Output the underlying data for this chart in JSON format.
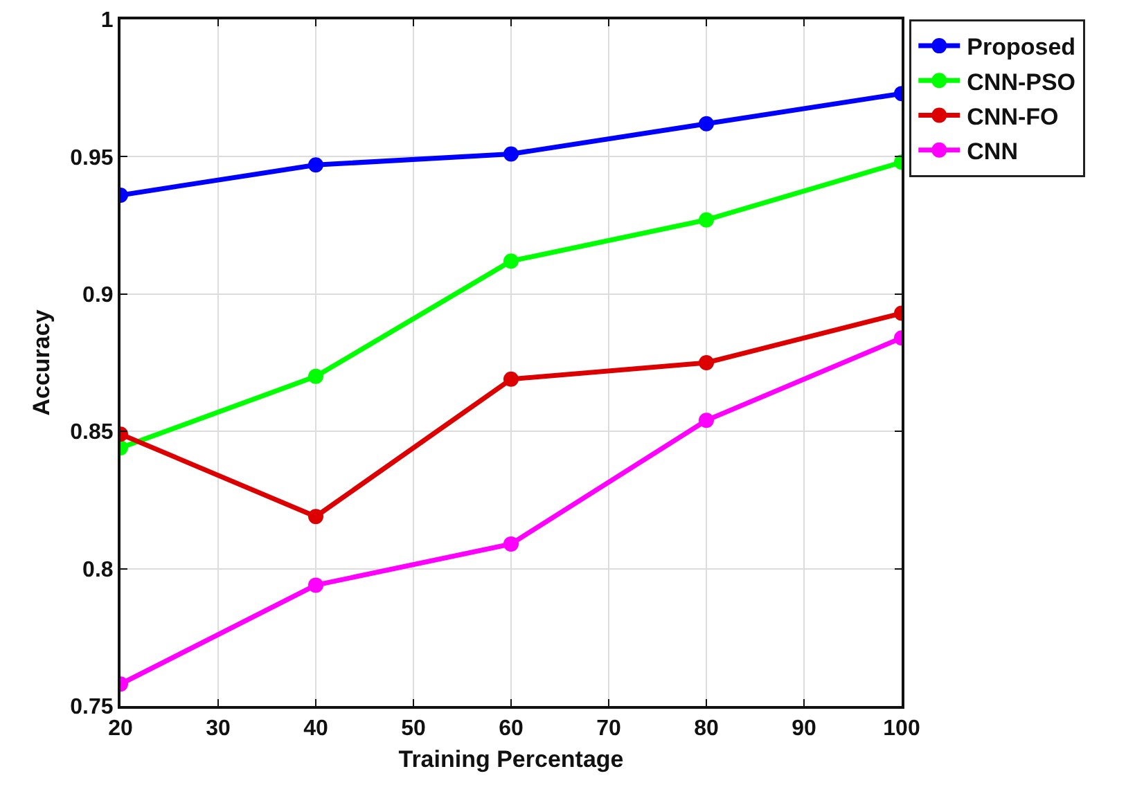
{
  "chart_data": {
    "type": "line",
    "xlabel": "Training Percentage",
    "ylabel": "Accuracy",
    "x": [
      20,
      40,
      60,
      80,
      100
    ],
    "series": [
      {
        "name": "Proposed",
        "color": "#0000ff",
        "values": [
          0.936,
          0.947,
          0.951,
          0.962,
          0.973
        ]
      },
      {
        "name": "CNN-PSO",
        "color": "#00ff00",
        "values": [
          0.844,
          0.87,
          0.912,
          0.927,
          0.948
        ]
      },
      {
        "name": "CNN-FO",
        "color": "#dd0000",
        "values": [
          0.849,
          0.819,
          0.869,
          0.875,
          0.893
        ]
      },
      {
        "name": "CNN",
        "color": "#ff00ff",
        "values": [
          0.758,
          0.794,
          0.809,
          0.854,
          0.884
        ]
      }
    ],
    "xlim": [
      20,
      100
    ],
    "xticks": [
      20,
      30,
      40,
      50,
      60,
      70,
      80,
      90,
      100
    ],
    "ylim": [
      0.75,
      1
    ],
    "yticks": [
      0.75,
      0.8,
      0.85,
      0.9,
      0.95,
      1
    ],
    "grid": true,
    "legend": "top right",
    "marker": "circle",
    "line_style": "solid"
  }
}
